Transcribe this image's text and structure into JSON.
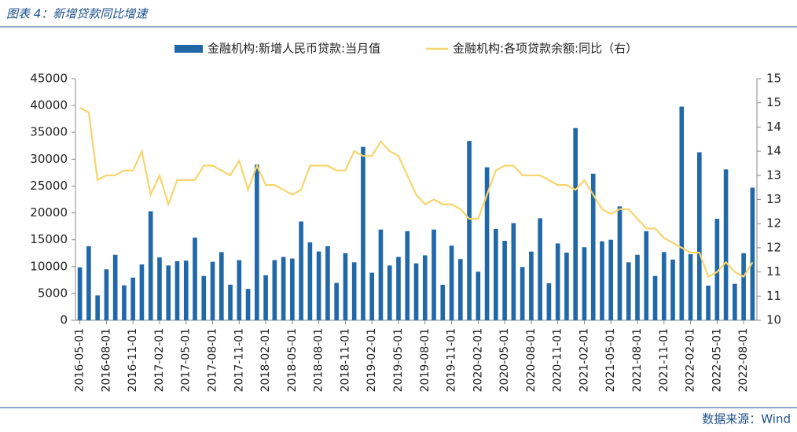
{
  "title": "图表 4：新增贷款同比增速",
  "source": "数据来源：Wind",
  "chart_data": {
    "type": "bar_line",
    "categories": [
      "2016-05-01",
      null,
      null,
      "2016-08-01",
      null,
      null,
      "2016-11-01",
      null,
      null,
      "2017-02-01",
      null,
      null,
      "2017-05-01",
      null,
      null,
      "2017-08-01",
      null,
      null,
      "2017-11-01",
      null,
      null,
      "2018-02-01",
      null,
      null,
      "2018-05-01",
      null,
      null,
      "2018-08-01",
      null,
      null,
      "2018-11-01",
      null,
      null,
      "2019-02-01",
      null,
      null,
      "2019-05-01",
      null,
      null,
      "2019-08-01",
      null,
      null,
      "2019-11-01",
      null,
      null,
      "2020-02-01",
      null,
      null,
      "2020-05-01",
      null,
      null,
      "2020-08-01",
      null,
      null,
      "2020-11-01",
      null,
      null,
      "2021-02-01",
      null,
      null,
      "2021-05-01",
      null,
      null,
      "2021-08-01",
      null,
      null,
      "2021-11-01",
      null,
      null,
      "2022-02-01",
      null,
      null,
      "2022-05-01",
      null,
      null,
      "2022-08-01",
      null
    ],
    "series": [
      {
        "name": "金融机构:新增人民币贷款:当月值",
        "type": "bar",
        "color": "#2068a8",
        "values": [
          9855,
          13800,
          4636,
          9487,
          12200,
          6513,
          7946,
          10400,
          20300,
          11700,
          10200,
          11000,
          11100,
          15400,
          8255,
          10900,
          12700,
          6632,
          11200,
          5844,
          29000,
          8393,
          11200,
          11800,
          11500,
          18400,
          14500,
          12800,
          13800,
          6970,
          12500,
          10800,
          32300,
          8858,
          16900,
          10200,
          11800,
          16600,
          10600,
          12100,
          16900,
          6613,
          13900,
          11400,
          33400,
          9057,
          28500,
          17000,
          14800,
          18100,
          9927,
          12800,
          19000,
          6898,
          14300,
          12600,
          35800,
          13600,
          27300,
          14700,
          15000,
          21200,
          10800,
          12200,
          16600,
          8262,
          12700,
          11300,
          39800,
          12300,
          31300,
          6454,
          18900,
          28100,
          6790,
          12500,
          24700
        ]
      },
      {
        "name": "金融机构:各项贷款余额:同比（右）",
        "type": "line",
        "axis": "y2",
        "color": "#f7d56b",
        "values": [
          14.4,
          14.3,
          12.9,
          13.0,
          13.0,
          13.1,
          13.1,
          13.5,
          12.6,
          13.0,
          12.4,
          12.9,
          12.9,
          12.9,
          13.2,
          13.2,
          13.1,
          13.0,
          13.3,
          12.7,
          13.2,
          12.8,
          12.8,
          12.7,
          12.6,
          12.7,
          13.2,
          13.2,
          13.2,
          13.1,
          13.1,
          13.5,
          13.4,
          13.4,
          13.7,
          13.5,
          13.4,
          13.0,
          12.6,
          12.4,
          12.5,
          12.4,
          12.4,
          12.3,
          12.1,
          12.1,
          12.6,
          13.1,
          13.2,
          13.2,
          13.0,
          13.0,
          13.0,
          12.9,
          12.8,
          12.8,
          12.7,
          12.9,
          12.6,
          12.3,
          12.2,
          12.3,
          12.3,
          12.1,
          11.9,
          11.9,
          11.7,
          11.6,
          11.5,
          11.4,
          11.4,
          10.9,
          11.0,
          11.2,
          11.0,
          10.9,
          11.2
        ]
      }
    ],
    "ylim": [
      0,
      45000
    ],
    "yticks": [
      0,
      5000,
      10000,
      15000,
      20000,
      25000,
      30000,
      35000,
      40000,
      45000
    ],
    "y2lim": [
      10,
      15
    ],
    "y2ticks": [
      10,
      {
        "value": 10.5,
        "label": "11"
      },
      11,
      {
        "value": 11.5,
        "label": "12"
      },
      12,
      {
        "value": 12.5,
        "label": "13"
      },
      13,
      {
        "value": 13.5,
        "label": "14"
      },
      14,
      {
        "value": 14.5,
        "label": "15"
      },
      15
    ],
    "legend": "top"
  }
}
